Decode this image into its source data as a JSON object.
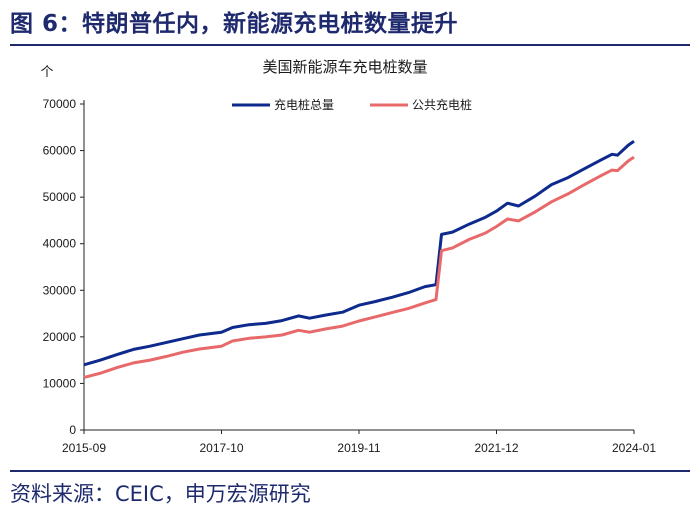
{
  "header": {
    "title": "图 6：特朗普任内，新能源充电桩数量提升"
  },
  "footer": {
    "source": "资料来源：CEIC，申万宏源研究"
  },
  "colors": {
    "accent": "#1f2a6e",
    "series1": "#0d2a8c",
    "series2": "#e8696a"
  },
  "chart_data": {
    "type": "line",
    "title": "美国新能源车充电桩数量",
    "unit": "个",
    "ylim": [
      0,
      70000
    ],
    "yticks": [
      0,
      10000,
      20000,
      30000,
      40000,
      50000,
      60000,
      70000
    ],
    "xlim": [
      "2015-09",
      "2024-01"
    ],
    "xticks": [
      "2015-09",
      "2017-10",
      "2019-11",
      "2021-12",
      "2024-01"
    ],
    "grid": false,
    "legend_position": "top-center",
    "series": [
      {
        "name": "充电桩总量",
        "color": "#0d2a8c",
        "points": [
          [
            "2015-09",
            14000
          ],
          [
            "2015-12",
            15000
          ],
          [
            "2016-03",
            16200
          ],
          [
            "2016-06",
            17300
          ],
          [
            "2016-09",
            18000
          ],
          [
            "2016-12",
            18800
          ],
          [
            "2017-03",
            19600
          ],
          [
            "2017-06",
            20400
          ],
          [
            "2017-10",
            21000
          ],
          [
            "2017-12",
            22000
          ],
          [
            "2018-03",
            22600
          ],
          [
            "2018-06",
            22900
          ],
          [
            "2018-09",
            23500
          ],
          [
            "2018-12",
            24500
          ],
          [
            "2019-02",
            24000
          ],
          [
            "2019-05",
            24700
          ],
          [
            "2019-08",
            25300
          ],
          [
            "2019-11",
            26800
          ],
          [
            "2020-02",
            27600
          ],
          [
            "2020-05",
            28500
          ],
          [
            "2020-08",
            29500
          ],
          [
            "2020-11",
            30800
          ],
          [
            "2021-01",
            31200
          ],
          [
            "2021-02",
            42000
          ],
          [
            "2021-04",
            42500
          ],
          [
            "2021-07",
            44200
          ],
          [
            "2021-10",
            45700
          ],
          [
            "2021-12",
            47000
          ],
          [
            "2022-02",
            48700
          ],
          [
            "2022-04",
            48100
          ],
          [
            "2022-07",
            50200
          ],
          [
            "2022-10",
            52700
          ],
          [
            "2023-01",
            54200
          ],
          [
            "2023-04",
            56100
          ],
          [
            "2023-07",
            58000
          ],
          [
            "2023-09",
            59200
          ],
          [
            "2023-10",
            59000
          ],
          [
            "2023-12",
            61200
          ],
          [
            "2024-01",
            62000
          ]
        ]
      },
      {
        "name": "公共充电桩",
        "color": "#e8696a",
        "points": [
          [
            "2015-09",
            11300
          ],
          [
            "2015-12",
            12200
          ],
          [
            "2016-03",
            13400
          ],
          [
            "2016-06",
            14400
          ],
          [
            "2016-09",
            15000
          ],
          [
            "2016-12",
            15800
          ],
          [
            "2017-03",
            16700
          ],
          [
            "2017-06",
            17400
          ],
          [
            "2017-10",
            18000
          ],
          [
            "2017-12",
            19100
          ],
          [
            "2018-03",
            19700
          ],
          [
            "2018-06",
            20000
          ],
          [
            "2018-09",
            20400
          ],
          [
            "2018-12",
            21400
          ],
          [
            "2019-02",
            21000
          ],
          [
            "2019-05",
            21700
          ],
          [
            "2019-08",
            22300
          ],
          [
            "2019-11",
            23400
          ],
          [
            "2020-02",
            24300
          ],
          [
            "2020-05",
            25200
          ],
          [
            "2020-08",
            26100
          ],
          [
            "2020-11",
            27300
          ],
          [
            "2021-01",
            28000
          ],
          [
            "2021-02",
            38500
          ],
          [
            "2021-04",
            39100
          ],
          [
            "2021-07",
            40900
          ],
          [
            "2021-10",
            42300
          ],
          [
            "2021-12",
            43700
          ],
          [
            "2022-02",
            45300
          ],
          [
            "2022-04",
            44900
          ],
          [
            "2022-07",
            46800
          ],
          [
            "2022-10",
            49000
          ],
          [
            "2023-01",
            50700
          ],
          [
            "2023-04",
            52700
          ],
          [
            "2023-07",
            54600
          ],
          [
            "2023-09",
            55800
          ],
          [
            "2023-10",
            55700
          ],
          [
            "2023-12",
            57800
          ],
          [
            "2024-01",
            58600
          ]
        ]
      }
    ]
  }
}
